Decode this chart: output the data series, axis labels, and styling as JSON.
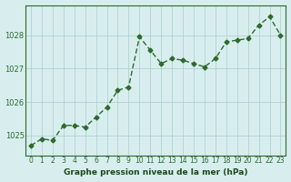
{
  "x": [
    0,
    1,
    2,
    3,
    4,
    5,
    6,
    7,
    8,
    9,
    10,
    11,
    12,
    13,
    14,
    15,
    16,
    17,
    18,
    19,
    20,
    21,
    22,
    23
  ],
  "y": [
    1024.7,
    1024.9,
    1024.85,
    1025.3,
    1025.3,
    1025.25,
    1025.55,
    1025.85,
    1026.35,
    1026.45,
    1027.95,
    1027.55,
    1027.15,
    1027.3,
    1027.25,
    1027.15,
    1027.05,
    1027.3,
    1027.8,
    1027.85,
    1027.9,
    1028.3,
    1028.55,
    1028.0
  ],
  "line_color": "#2d6a2d",
  "marker_color": "#2d6a2d",
  "bg_color": "#d8eeee",
  "grid_color": "#aacccc",
  "xlabel": "Graphe pression niveau de la mer (hPa)",
  "xlabel_color": "#1a4a1a",
  "ylabel_ticks": [
    1025,
    1026,
    1027,
    1028
  ],
  "ylim": [
    1024.4,
    1028.9
  ],
  "xlim": [
    -0.5,
    23.5
  ],
  "tick_color": "#2d6a2d",
  "border_color": "#2d6a2d"
}
